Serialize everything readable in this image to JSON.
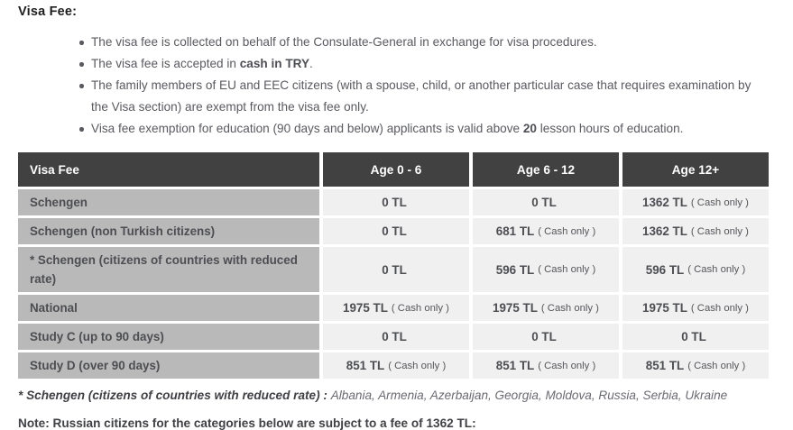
{
  "title": "Visa Fee:",
  "bullets": [
    {
      "pre": "The visa fee is collected on behalf of the Consulate-General in exchange for visa procedures.",
      "bold": "",
      "post": ""
    },
    {
      "pre": "The visa fee is accepted in ",
      "bold": "cash in TRY",
      "post": "."
    },
    {
      "pre": "The family members of EU and EEC citizens (with a spouse, child, or another particular case that requires examination by the Visa section) are exempt from the visa fee only.",
      "bold": "",
      "post": ""
    },
    {
      "pre": "Visa fee exemption for education (90 days and below) applicants is valid above ",
      "bold": "20",
      "post": " lesson hours of education."
    }
  ],
  "table": {
    "headers": [
      "Visa Fee",
      "Age 0 - 6",
      "Age 6 - 12",
      "Age 12+"
    ],
    "rows": [
      {
        "label": "Schengen",
        "cells": [
          {
            "amount": "0 TL",
            "note": ""
          },
          {
            "amount": "0 TL",
            "note": ""
          },
          {
            "amount": "1362 TL",
            "note": "( Cash only )"
          }
        ]
      },
      {
        "label": "Schengen (non Turkish citizens)",
        "cells": [
          {
            "amount": "0 TL",
            "note": ""
          },
          {
            "amount": "681 TL",
            "note": "( Cash only )"
          },
          {
            "amount": "1362 TL",
            "note": "( Cash only )"
          }
        ]
      },
      {
        "label": "* Schengen (citizens of countries with reduced rate)",
        "cells": [
          {
            "amount": "0 TL",
            "note": ""
          },
          {
            "amount": "596 TL",
            "note": "( Cash only )"
          },
          {
            "amount": "596 TL",
            "note": "( Cash only )"
          }
        ]
      },
      {
        "label": "National",
        "cells": [
          {
            "amount": "1975 TL",
            "note": "( Cash only )"
          },
          {
            "amount": "1975 TL",
            "note": "( Cash only )"
          },
          {
            "amount": "1975 TL",
            "note": "( Cash only )"
          }
        ]
      },
      {
        "label": "Study C (up to 90 days)",
        "cells": [
          {
            "amount": "0 TL",
            "note": ""
          },
          {
            "amount": "0 TL",
            "note": ""
          },
          {
            "amount": "0 TL",
            "note": ""
          }
        ]
      },
      {
        "label": "Study D (over 90 days)",
        "cells": [
          {
            "amount": "851 TL",
            "note": "( Cash only )"
          },
          {
            "amount": "851 TL",
            "note": "( Cash only )"
          },
          {
            "amount": "851 TL",
            "note": "( Cash only )"
          }
        ]
      }
    ]
  },
  "footnote": {
    "label": "* Schengen (citizens of countries with reduced rate) : ",
    "countries": "Albania, Armenia, Azerbaijan, Georgia, Moldova, Russia, Serbia, Ukraine"
  },
  "note": "Note: Russian citizens for the categories below are subject to a fee of 1362 TL:",
  "colors": {
    "header_bg": "#414141",
    "header_text": "#ffffff",
    "label_column_bg": "#b9b9b9",
    "value_cell_bg": "#f0f0f0",
    "body_text": "#595a5f",
    "dark_text": "#1d1d1f"
  }
}
